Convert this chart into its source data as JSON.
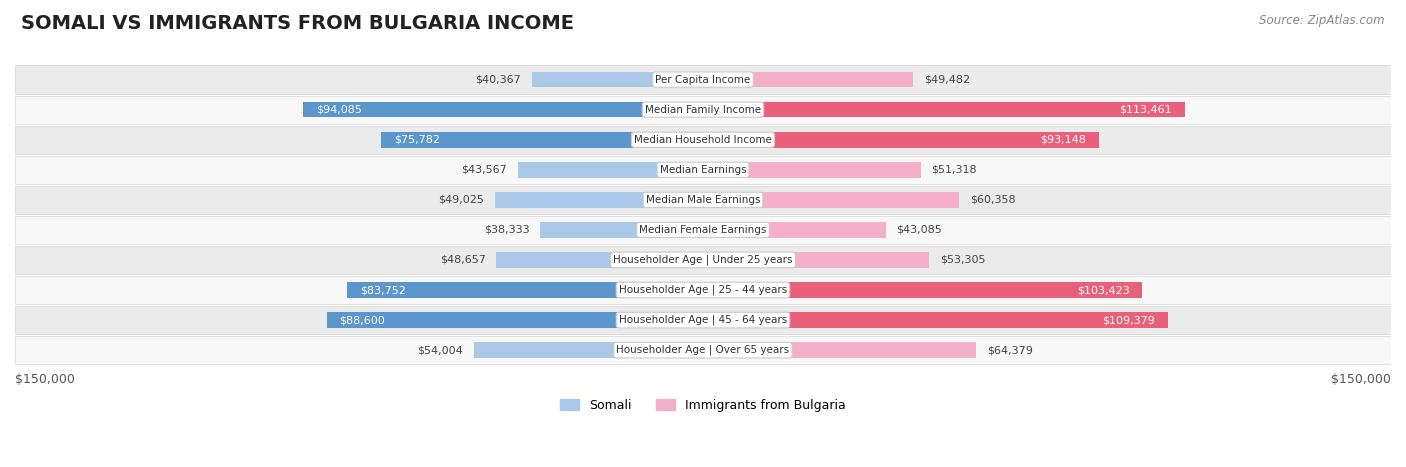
{
  "title": "SOMALI VS IMMIGRANTS FROM BULGARIA INCOME",
  "source": "Source: ZipAtlas.com",
  "categories": [
    "Per Capita Income",
    "Median Family Income",
    "Median Household Income",
    "Median Earnings",
    "Median Male Earnings",
    "Median Female Earnings",
    "Householder Age | Under 25 years",
    "Householder Age | 25 - 44 years",
    "Householder Age | 45 - 64 years",
    "Householder Age | Over 65 years"
  ],
  "somali_values": [
    40367,
    94085,
    75782,
    43567,
    49025,
    38333,
    48657,
    83752,
    88600,
    54004
  ],
  "bulgaria_values": [
    49482,
    113461,
    93148,
    51318,
    60358,
    43085,
    53305,
    103423,
    109379,
    64379
  ],
  "somali_labels": [
    "$40,367",
    "$94,085",
    "$75,782",
    "$43,567",
    "$49,025",
    "$38,333",
    "$48,657",
    "$83,752",
    "$88,600",
    "$54,004"
  ],
  "bulgaria_labels": [
    "$49,482",
    "$113,461",
    "$93,148",
    "$51,318",
    "$60,358",
    "$43,085",
    "$53,305",
    "$103,423",
    "$109,379",
    "$64,379"
  ],
  "max_value": 150000,
  "somali_light_color": "#aac8e8",
  "somali_dark_color": "#5b96cc",
  "bulgaria_light_color": "#f4b0c8",
  "bulgaria_dark_color": "#e8607a",
  "bg_row_color": "#ebebeb",
  "bg_alt_color": "#f8f8f8",
  "x_axis_label_left": "$150,000",
  "x_axis_label_right": "$150,000",
  "legend_somali": "Somali",
  "legend_bulgaria": "Immigrants from Bulgaria",
  "title_fontsize": 14,
  "source_fontsize": 8.5,
  "bar_label_fontsize": 8,
  "category_fontsize": 7.5
}
